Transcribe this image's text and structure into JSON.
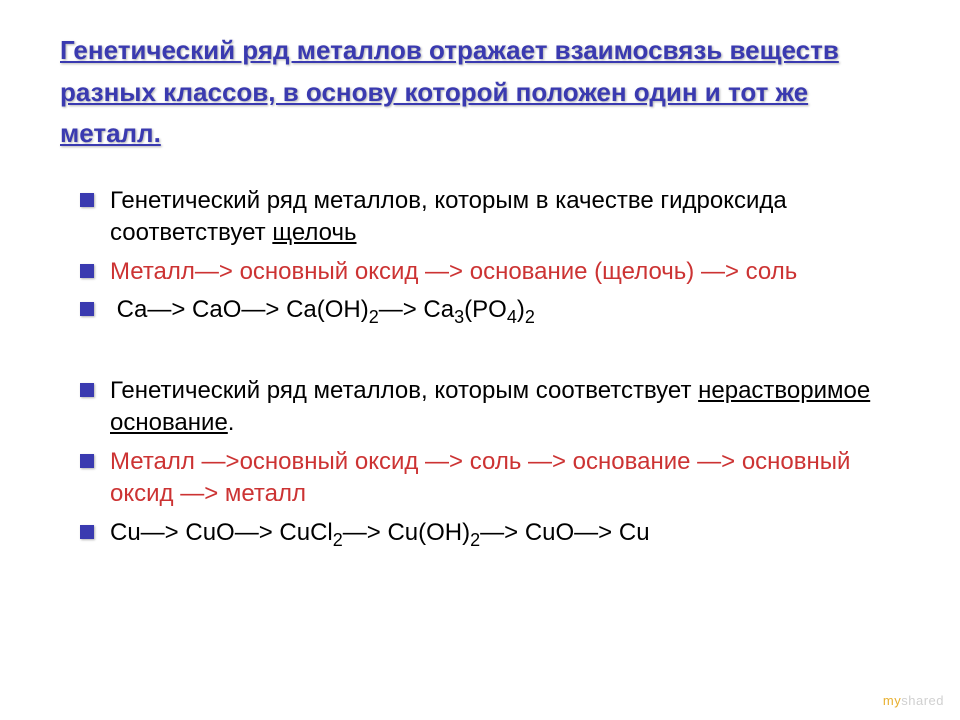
{
  "title": "Генетический ряд металлов отражает взаимосвязь веществ разных классов, в основу которой положен один и тот же металл.",
  "bullets": [
    {
      "kind": "text",
      "pre": "Генетический ряд металлов, которым в качестве гидроксида соответствует ",
      "under": "щелочь",
      "color": "#000000"
    },
    {
      "kind": "plain",
      "text": "Металл—> основный оксид —> основание (щелочь) —> соль",
      "color": "#cc3333"
    },
    {
      "kind": "formula1",
      "color": "#000000"
    },
    {
      "kind": "gap"
    },
    {
      "kind": "text",
      "pre": "Генетический ряд металлов, которым соответствует ",
      "under": "нерастворимое основание",
      "post": ".",
      "color": "#000000"
    },
    {
      "kind": "plain",
      "text": "Металл —>основный оксид —> соль —> основание —> основный оксид —> металл",
      "color": "#cc3333"
    },
    {
      "kind": "formula2",
      "color": "#000000"
    }
  ],
  "formula1": {
    "parts": [
      " Ca—> CaO—> Ca(OH)",
      "2",
      "—> Ca",
      "3",
      "(PO",
      "4",
      ")",
      "2"
    ]
  },
  "formula2": {
    "parts": [
      "Cu—> CuO—> CuCl",
      "2",
      "—> Cu(OH)",
      "2",
      "—> CuO—> Cu"
    ]
  },
  "watermark": {
    "my": "my",
    "shared": "shared"
  },
  "colors": {
    "title": "#3a3ab0",
    "bullet": "#3a3ab0",
    "body_black": "#000000",
    "body_red": "#cc3333",
    "background": "#ffffff"
  },
  "fontsize": {
    "title": 26,
    "body": 24
  }
}
